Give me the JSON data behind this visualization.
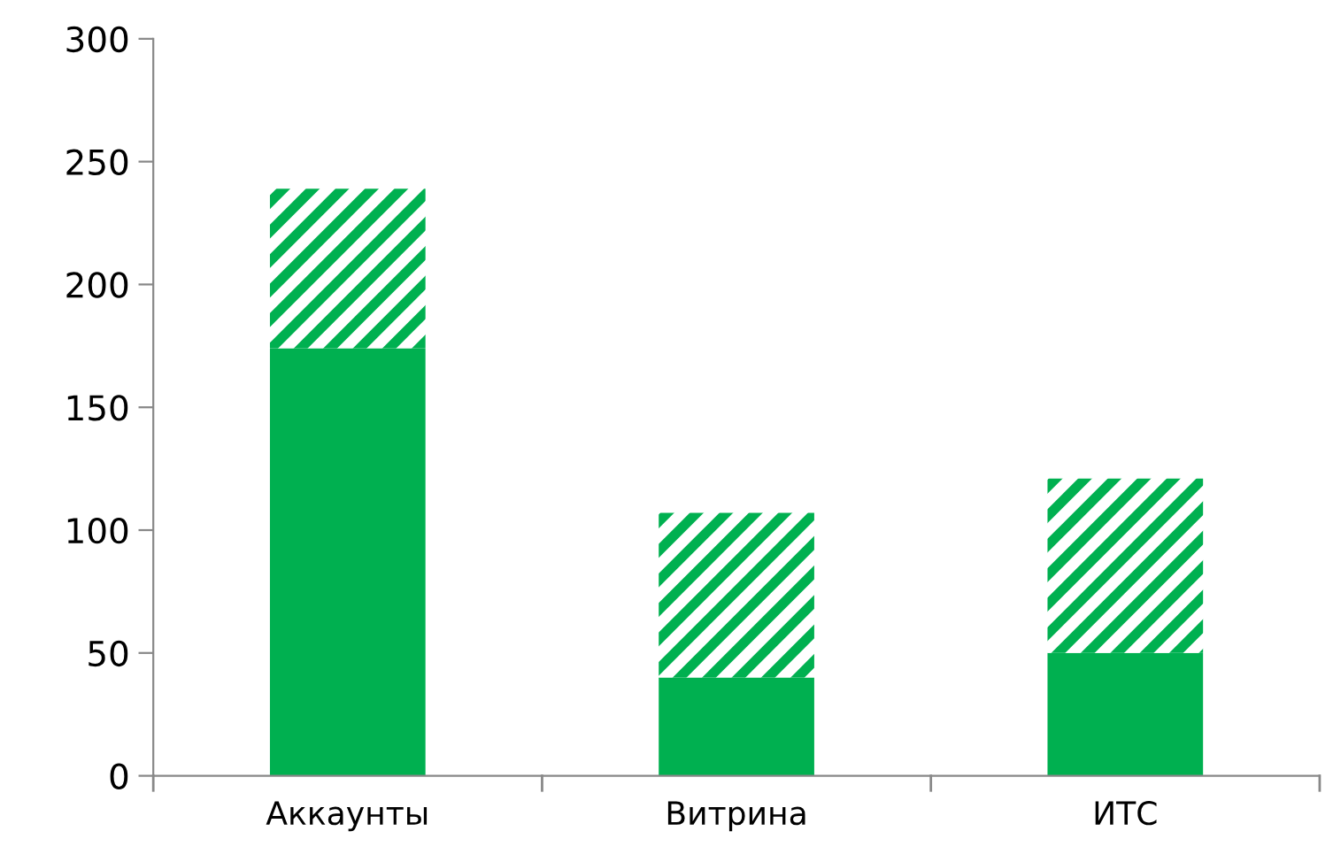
{
  "chart_data": {
    "type": "bar",
    "stacked": true,
    "categories": [
      "Аккаунты",
      "Витрина",
      "ИТС"
    ],
    "series": [
      {
        "color": "#00b050",
        "values": [
          174,
          40,
          50
        ]
      },
      {
        "color": "#00b050",
        "values": [
          65,
          67,
          71
        ]
      }
    ],
    "ylim": [
      0,
      300
    ],
    "yticks": [
      0,
      50,
      100,
      150,
      200,
      250,
      300
    ],
    "grid": false,
    "legend": false
  }
}
